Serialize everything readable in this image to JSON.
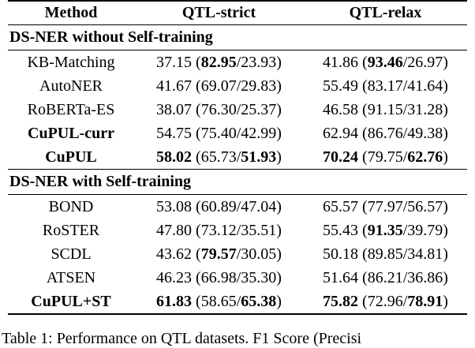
{
  "table": {
    "header": [
      "Method",
      "QTL-strict",
      "QTL-relax"
    ],
    "sections": [
      {
        "title": "DS-NER without Self-training",
        "rows": [
          [
            [
              {
                "t": "KB-Matching"
              }
            ],
            [
              {
                "t": "37.15 ("
              },
              {
                "t": "82.95",
                "b": true
              },
              {
                "t": "/23.93)"
              }
            ],
            [
              {
                "t": "41.86 ("
              },
              {
                "t": "93.46",
                "b": true
              },
              {
                "t": "/26.97)"
              }
            ]
          ],
          [
            [
              {
                "t": "AutoNER"
              }
            ],
            [
              {
                "t": "41.67 (69.07/29.83)"
              }
            ],
            [
              {
                "t": "55.49 (83.17/41.64)"
              }
            ]
          ],
          [
            [
              {
                "t": "RoBERTa-ES"
              }
            ],
            [
              {
                "t": "38.07 (76.30/25.37)"
              }
            ],
            [
              {
                "t": "46.58 (91.15/31.28)"
              }
            ]
          ],
          [
            [
              {
                "t": "CuPUL-curr",
                "b": true
              }
            ],
            [
              {
                "t": "54.75 (75.40/42.99)"
              }
            ],
            [
              {
                "t": "62.94 (86.76/49.38)"
              }
            ]
          ],
          [
            [
              {
                "t": "CuPUL",
                "b": true
              }
            ],
            [
              {
                "t": "58.02",
                "b": true
              },
              {
                "t": " (65.73/"
              },
              {
                "t": "51.93",
                "b": true
              },
              {
                "t": ")"
              }
            ],
            [
              {
                "t": "70.24",
                "b": true
              },
              {
                "t": " (79.75/"
              },
              {
                "t": "62.76",
                "b": true
              },
              {
                "t": ")"
              }
            ]
          ]
        ]
      },
      {
        "title": "DS-NER with Self-training",
        "rows": [
          [
            [
              {
                "t": "BOND"
              }
            ],
            [
              {
                "t": "53.08 (60.89/47.04)"
              }
            ],
            [
              {
                "t": "65.57 (77.97/56.57)"
              }
            ]
          ],
          [
            [
              {
                "t": "RoSTER"
              }
            ],
            [
              {
                "t": "47.80 (73.12/35.51)"
              }
            ],
            [
              {
                "t": "55.43 ("
              },
              {
                "t": "91.35",
                "b": true
              },
              {
                "t": "/39.79)"
              }
            ]
          ],
          [
            [
              {
                "t": "SCDL"
              }
            ],
            [
              {
                "t": "43.62 ("
              },
              {
                "t": "79.57",
                "b": true
              },
              {
                "t": "/30.05)"
              }
            ],
            [
              {
                "t": "50.18 (89.85/34.81)"
              }
            ]
          ],
          [
            [
              {
                "t": "ATSEN"
              }
            ],
            [
              {
                "t": "46.23 (66.98/35.30)"
              }
            ],
            [
              {
                "t": "51.64 (86.21/36.86)"
              }
            ]
          ],
          [
            [
              {
                "t": "CuPUL+ST",
                "b": true
              }
            ],
            [
              {
                "t": "61.83",
                "b": true
              },
              {
                "t": " (58.65/"
              },
              {
                "t": "65.38",
                "b": true
              },
              {
                "t": ")"
              }
            ],
            [
              {
                "t": "75.82",
                "b": true
              },
              {
                "t": " (72.96/"
              },
              {
                "t": "78.91",
                "b": true
              },
              {
                "t": ")"
              }
            ]
          ]
        ]
      }
    ]
  },
  "caption": "Table 1: Performance on QTL datasets. F1 Score (Precisi"
}
